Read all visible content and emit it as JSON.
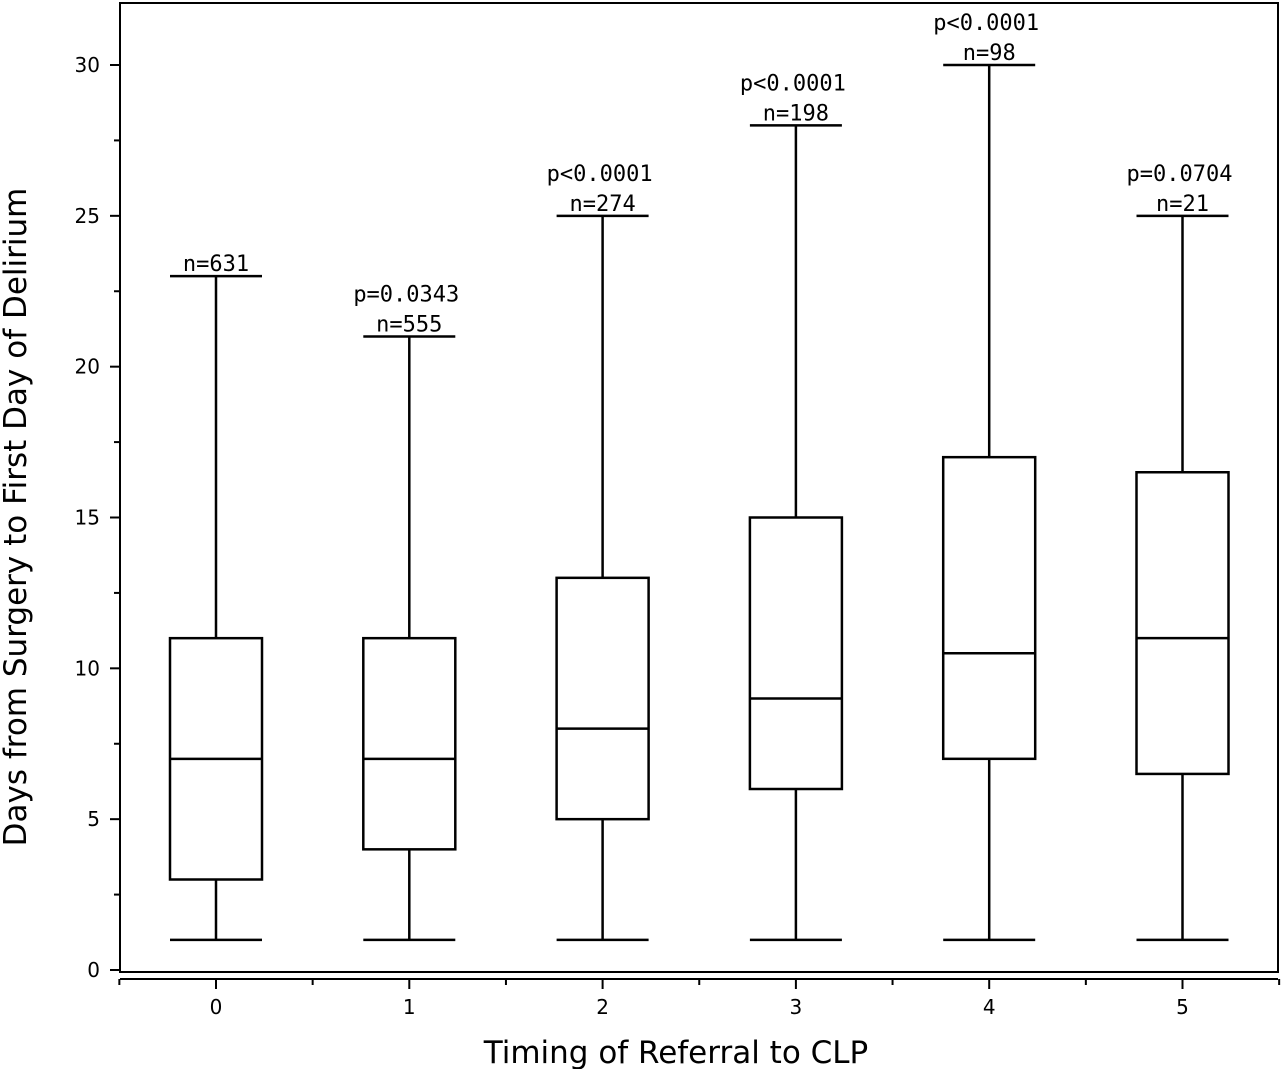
{
  "chart_data": {
    "type": "box",
    "title": "",
    "xlabel": "Timing of Referral to CLP",
    "ylabel": "Days from Surgery to First Day of Delirium",
    "ylim": [
      0,
      32
    ],
    "yticks": [
      0,
      5,
      10,
      15,
      20,
      25,
      30
    ],
    "grid": false,
    "categories": [
      "0",
      "1",
      "2",
      "3",
      "4",
      "5"
    ],
    "boxes": [
      {
        "category": "0",
        "min": 1,
        "q1": 3,
        "median": 7,
        "q3": 11,
        "max": 23,
        "n_label": "n=631",
        "p_label": ""
      },
      {
        "category": "1",
        "min": 1,
        "q1": 4,
        "median": 7,
        "q3": 11,
        "max": 21,
        "n_label": "n=555",
        "p_label": "p=0.0343"
      },
      {
        "category": "2",
        "min": 1,
        "q1": 5,
        "median": 8,
        "q3": 13,
        "max": 25,
        "n_label": "n=274",
        "p_label": "p<0.0001"
      },
      {
        "category": "3",
        "min": 1,
        "q1": 6,
        "median": 9,
        "q3": 15,
        "max": 28,
        "n_label": "n=198",
        "p_label": "p<0.0001"
      },
      {
        "category": "4",
        "min": 1,
        "q1": 7,
        "median": 10.5,
        "q3": 17,
        "max": 30,
        "n_label": "n=98",
        "p_label": "p<0.0001"
      },
      {
        "category": "5",
        "min": 1,
        "q1": 6.5,
        "median": 11,
        "q3": 16.5,
        "max": 25,
        "n_label": "n=21",
        "p_label": "p=0.0704"
      }
    ]
  }
}
